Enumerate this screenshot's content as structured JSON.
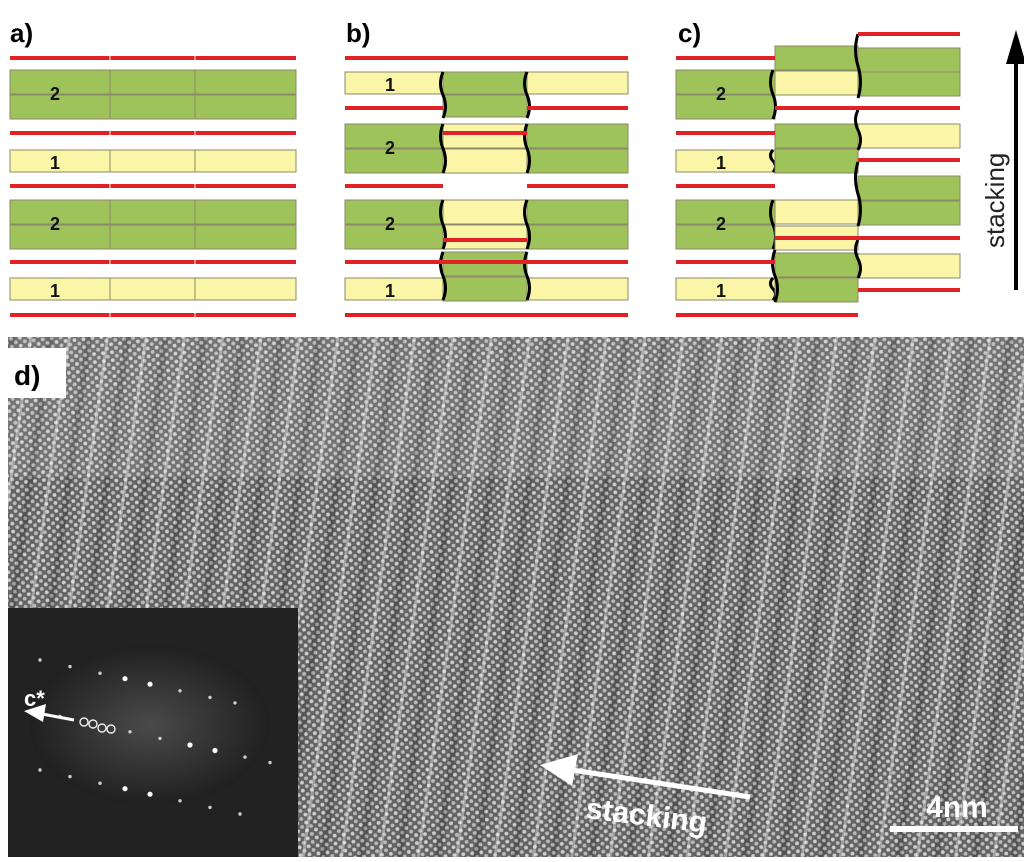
{
  "panels": {
    "a": {
      "label": "a)",
      "blocks": [
        {
          "kind": "double",
          "number": "2"
        },
        {
          "kind": "single",
          "number": "1"
        },
        {
          "kind": "double",
          "number": "2"
        },
        {
          "kind": "single",
          "number": "1"
        }
      ]
    },
    "b": {
      "label": "b)",
      "blocks": [
        {
          "kind": "single",
          "number": "1"
        },
        {
          "kind": "double",
          "number": "2"
        },
        {
          "kind": "double",
          "number": "2"
        },
        {
          "kind": "single",
          "number": "1"
        }
      ]
    },
    "c": {
      "label": "c)",
      "blocks": [
        {
          "kind": "double",
          "number": "2"
        },
        {
          "kind": "single",
          "number": "1"
        },
        {
          "kind": "double",
          "number": "2"
        },
        {
          "kind": "single",
          "number": "1"
        }
      ]
    },
    "d": {
      "label": "d)"
    }
  },
  "stacking_axis": {
    "label": "stacking"
  },
  "micrograph": {
    "arrow_label": "stacking",
    "scale_bar_label": "4nm"
  },
  "inset": {
    "axis_label": "c*"
  },
  "colors": {
    "green_layer": "#9dc35a",
    "yellow_layer": "#fbf5a8",
    "red_line": "#e02126",
    "outline": "#8a8a6a",
    "black": "#000000"
  }
}
